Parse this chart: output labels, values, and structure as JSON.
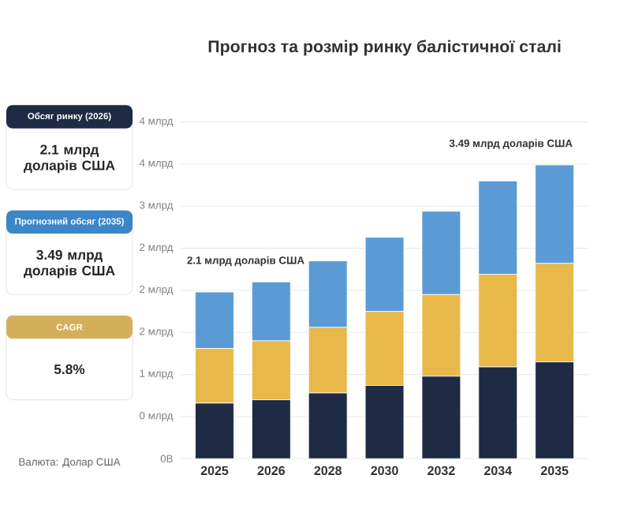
{
  "chart_data": [
    {
      "type": "other",
      "annotations": [
        "Обсяг ринку (2026)",
        "2.1 млрд доларів США",
        "Прогнозний обсяг (2035)",
        "3.49 млрд доларів США",
        "CAGR",
        "5.8%",
        "Валюта: Долар США"
      ]
    },
    {
      "type": "bar",
      "title": "Прогноз та розмір ринку балістичної сталі",
      "stacked": true,
      "grid": "y",
      "categories": [
        "2025",
        "2026",
        "2028",
        "2030",
        "2032",
        "2034",
        "2035"
      ],
      "series": [
        {
          "color": "#1f2a44",
          "values": [
            0.66,
            0.7,
            0.78,
            0.87,
            0.98,
            1.09,
            1.15
          ]
        },
        {
          "color": "#e8b84a",
          "values": [
            0.65,
            0.7,
            0.78,
            0.88,
            0.97,
            1.1,
            1.17
          ]
        },
        {
          "color": "#5b9bd5",
          "values": [
            0.67,
            0.7,
            0.79,
            0.88,
            0.99,
            1.11,
            1.17
          ]
        }
      ],
      "ylim": [
        0,
        4
      ],
      "yticks": [
        {
          "value": 0,
          "label": "0B"
        },
        {
          "value": 0.5,
          "label": "0 млрд"
        },
        {
          "value": 1,
          "label": "1 млрд"
        },
        {
          "value": 1.5,
          "label": "2 млрд"
        },
        {
          "value": 2,
          "label": "2 млрд"
        },
        {
          "value": 2.5,
          "label": "2 млрд"
        },
        {
          "value": 3,
          "label": "3 млрд"
        },
        {
          "value": 3.5,
          "label": "4 млрд"
        },
        {
          "value": 4,
          "label": "4 млрд"
        }
      ],
      "annotations": [
        {
          "text": "2.1 млрд доларів США",
          "x": "2026",
          "y": 2.1
        },
        {
          "text": "3.49 млрд доларів США",
          "x": "2035",
          "y": 3.49
        }
      ]
    }
  ]
}
